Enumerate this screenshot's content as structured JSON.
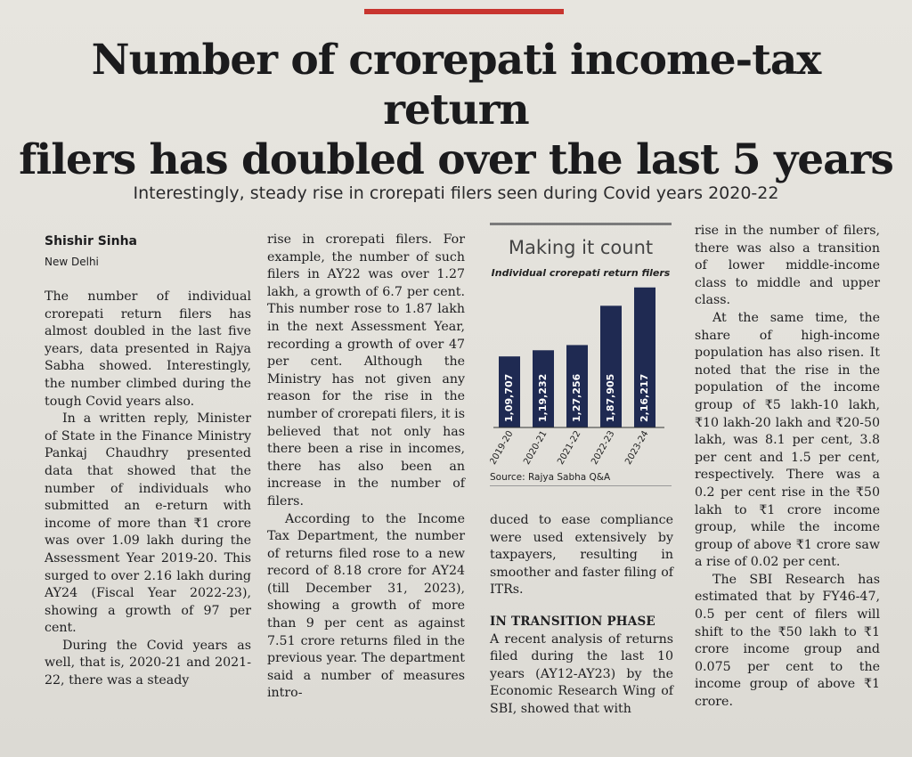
{
  "article": {
    "headline_line1": "Number of crorepati income-tax return",
    "headline_line2": "filers has doubled over the last 5 years",
    "deck": "Interestingly, steady rise in crorepati filers seen during Covid years 2020-22",
    "byline": "Shishir Sinha",
    "dateline": "New Delhi",
    "col1": [
      "The number of individual crorepati return filers has almost doubled in the last five years, data presented in Rajya Sabha showed. Interestingly, the number climbed during the tough Covid years also.",
      "In a written reply, Minister of State in the Finance Ministry Pankaj Chaudhry presented data that showed that the number of individuals who submitted an e-return with income of more than ₹1 crore was over 1.09 lakh during the Assessment Year 2019-20. This surged to over 2.16 lakh during AY24 (Fiscal Year 2022-23), showing a growth of 97 per cent.",
      "During the Covid years as well, that is, 2020-21 and 2021-22, there was a steady"
    ],
    "col2": [
      "rise in crorepati filers. For example, the number of such filers in AY22 was over 1.27 lakh, a growth of 6.7 per cent. This number rose to 1.87 lakh in the next Assessment Year, recording a growth of over 47 per cent. Although the Ministry has not given any reason for the rise in the number of crorepati filers, it is believed that not only has there been a rise in incomes, there has also been an increase in the number of filers.",
      "According to the Income Tax Department, the number of returns filed rose to a new record of 8.18 crore for AY24 (till December 31, 2023), showing a growth of more than 9 per cent as against 7.51 crore returns filed in the previous year. The department said a number of measures intro-"
    ],
    "col3": [
      "duced to ease compliance were used extensively by taxpayers, resulting in smoother and faster filing of ITRs."
    ],
    "subhead": "IN TRANSITION PHASE",
    "col3b": [
      "A recent analysis of returns filed during the last 10 years (AY12-AY23) by the Economic Research Wing of SBI, showed that with"
    ],
    "col4": [
      "rise in the number of filers, there was also a transition of lower middle-income class to middle and upper class.",
      "At the same time, the share of high-income population has also risen. It noted that the rise in the population of the income group of ₹5 lakh-10 lakh, ₹10 lakh-20 lakh and ₹20-50 lakh, was 8.1 per cent, 3.8 per cent and 1.5 per cent, respectively. There was a 0.2 per cent rise in the ₹50 lakh to ₹1 crore income group, while the income group of above ₹1 crore saw a rise of 0.02 per cent.",
      "The SBI Research has estimated that by FY46-47, 0.5 per cent of filers will shift to the ₹50 lakh to ₹1 crore income group and 0.075 per cent to the income group of above ₹1 crore."
    ]
  },
  "chart_data": {
    "type": "bar",
    "title": "Making it count",
    "subtitle": "Individual crorepati return filers",
    "categories": [
      "2019-20",
      "2020-21",
      "2021-22",
      "2022-23",
      "2023-24"
    ],
    "values": [
      109707,
      119232,
      127256,
      187905,
      216217
    ],
    "value_labels": [
      "1,09,707",
      "1,19,232",
      "1,27,256",
      "1,87,905",
      "2,16,217"
    ],
    "source": "Source: Rajya Sabha Q&A",
    "bar_color": "#1f2a52",
    "ylim": [
      0,
      220000
    ]
  }
}
